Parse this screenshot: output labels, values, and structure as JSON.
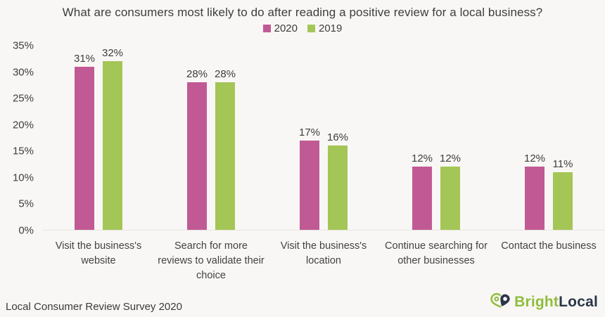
{
  "title": "What are consumers most likely to do after reading a positive review for a local business?",
  "chart_data": {
    "type": "bar",
    "title": "What are consumers most likely to do after reading a positive review for a local business?",
    "categories": [
      "Visit the business's website",
      "Search for more reviews to validate their choice",
      "Visit the business's location",
      "Continue searching for other businesses",
      "Contact the business"
    ],
    "series": [
      {
        "name": "2020",
        "color": "#c15a94",
        "values": [
          31,
          28,
          17,
          12,
          12
        ]
      },
      {
        "name": "2019",
        "color": "#a4c656",
        "values": [
          32,
          28,
          16,
          12,
          11
        ]
      }
    ],
    "value_suffix": "%",
    "xlabel": "",
    "ylabel": "",
    "ylim": [
      0,
      35
    ],
    "yticks": [
      35,
      30,
      25,
      20,
      15,
      10,
      5,
      0
    ],
    "ytick_suffix": "%",
    "grid": false,
    "legend_position": "top"
  },
  "legend": [
    {
      "label": "2020",
      "color": "#c15a94"
    },
    {
      "label": "2019",
      "color": "#a4c656"
    }
  ],
  "footer": {
    "source": "Local Consumer Review Survey 2020",
    "logo": {
      "icon": "map-pin-heart-icon",
      "text_primary": "Bright",
      "text_secondary": "Local",
      "color_primary": "#90bd3c",
      "color_secondary": "#2b3648"
    }
  },
  "colors": {
    "background": "#f8f7f5",
    "text": "#3d3d3d",
    "axis_line": "#e7e6e2"
  }
}
